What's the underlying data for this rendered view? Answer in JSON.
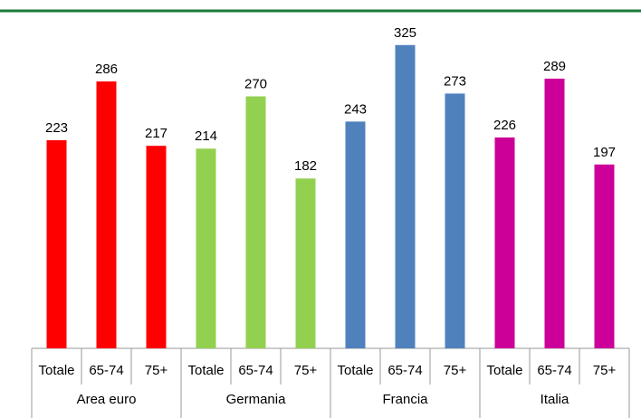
{
  "chart_data": {
    "type": "bar",
    "groups": [
      {
        "name": "Area euro",
        "color": "#ff0000",
        "categories": [
          "Totale",
          "65-74",
          "75+"
        ],
        "values": [
          223,
          286,
          217
        ]
      },
      {
        "name": "Germania",
        "color": "#92d050",
        "categories": [
          "Totale",
          "65-74",
          "75+"
        ],
        "values": [
          214,
          270,
          182
        ]
      },
      {
        "name": "Francia",
        "color": "#4f81bd",
        "categories": [
          "Totale",
          "65-74",
          "75+"
        ],
        "values": [
          243,
          325,
          273
        ]
      },
      {
        "name": "Italia",
        "color": "#cc0099",
        "categories": [
          "Totale",
          "65-74",
          "75+"
        ],
        "values": [
          226,
          289,
          197
        ]
      }
    ],
    "ylim": [
      0,
      350
    ]
  }
}
